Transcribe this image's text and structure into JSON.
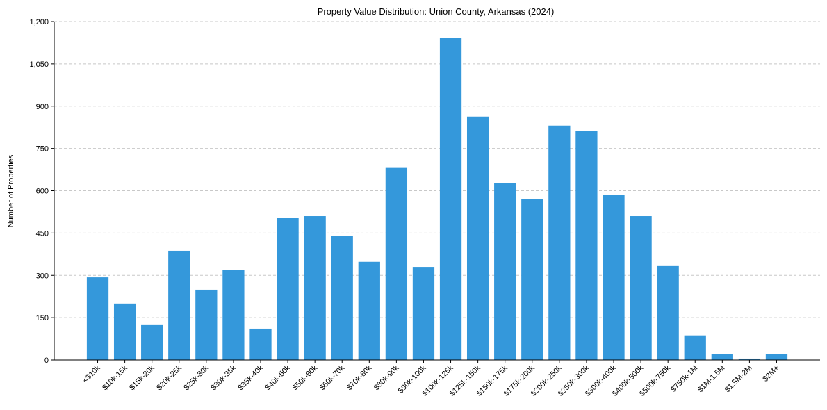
{
  "chart_data": {
    "type": "bar",
    "title": "Property Value Distribution: Union County, Arkansas (2024)",
    "xlabel": "",
    "ylabel": "Number of Properties",
    "ylim": [
      0,
      1200
    ],
    "yticks": [
      0,
      150,
      300,
      450,
      600,
      750,
      900,
      1050,
      1200
    ],
    "ytick_labels": [
      "0",
      "150",
      "300",
      "450",
      "600",
      "750",
      "900",
      "1,050",
      "1,200"
    ],
    "grid": true,
    "bar_color": "#3498db",
    "categories": [
      "<$10k",
      "$10k-15k",
      "$15k-20k",
      "$20k-25k",
      "$25k-30k",
      "$30k-35k",
      "$35k-40k",
      "$40k-50k",
      "$50k-60k",
      "$60k-70k",
      "$70k-80k",
      "$80k-90k",
      "$90k-100k",
      "$100k-125k",
      "$125k-150k",
      "$150k-175k",
      "$175k-200k",
      "$200k-250k",
      "$250k-300k",
      "$300k-400k",
      "$400k-500k",
      "$500k-750k",
      "$750k-1M",
      "$1M-1.5M",
      "$1.5M-2M",
      "$2M+"
    ],
    "values": [
      293,
      200,
      126,
      387,
      249,
      318,
      111,
      505,
      510,
      441,
      348,
      681,
      330,
      1143,
      863,
      627,
      571,
      831,
      813,
      584,
      510,
      333,
      87,
      20,
      5,
      20
    ]
  }
}
